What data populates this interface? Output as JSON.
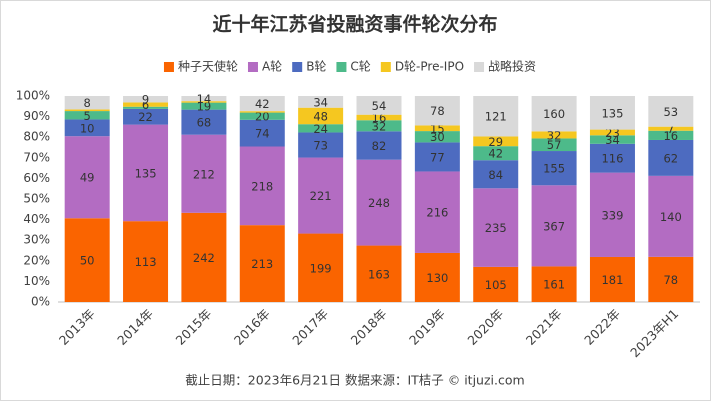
{
  "chart_data": {
    "type": "bar",
    "stacking": "percent",
    "title": "近十年江苏省投融资事件轮次分布",
    "note": "截止日期：2023年6月21日    数据来源：IT桔子 © itjuzi.com",
    "categories": [
      "2013年",
      "2014年",
      "2015年",
      "2016年",
      "2017年",
      "2018年",
      "2019年",
      "2020年",
      "2021年",
      "2022年",
      "2023年H1"
    ],
    "series": [
      {
        "name": "种子天使轮",
        "color": "#fa6400",
        "values": [
          50,
          113,
          242,
          213,
          199,
          163,
          130,
          105,
          161,
          181,
          78
        ]
      },
      {
        "name": "A轮",
        "color": "#b36cc2",
        "values": [
          49,
          135,
          212,
          218,
          221,
          248,
          216,
          235,
          367,
          339,
          140
        ]
      },
      {
        "name": "B轮",
        "color": "#4d6bc0",
        "values": [
          10,
          22,
          68,
          74,
          73,
          82,
          77,
          84,
          155,
          116,
          62
        ],
        "value_labels": [
          "10",
          "22",
          "68",
          "74",
          "73",
          "82",
          "77",
          "84",
          "155",
          "116",
          "62"
        ]
      },
      {
        "name": "C轮",
        "color": "#4dba8a",
        "values": [
          5,
          3,
          19,
          20,
          24,
          32,
          30,
          42,
          57,
          34,
          16
        ],
        "value_labels": [
          "5",
          null,
          "19",
          "20",
          "24",
          "32",
          "30",
          "42",
          "57",
          "34",
          "16"
        ]
      },
      {
        "name": "D轮-Pre-IPO",
        "color": "#f5c720",
        "values": [
          1,
          6,
          4,
          4,
          48,
          16,
          15,
          29,
          32,
          23,
          7
        ],
        "value_labels": [
          null,
          "6",
          null,
          null,
          "48",
          "16",
          "15",
          "29",
          "32",
          "23",
          "7"
        ]
      },
      {
        "name": "战略投资",
        "color": "#d9d9d9",
        "values": [
          8,
          9,
          14,
          42,
          34,
          54,
          78,
          121,
          160,
          135,
          53
        ]
      }
    ],
    "ylim": [
      0,
      100
    ],
    "yticks": [
      {
        "value": 0,
        "label": "0%"
      },
      {
        "value": 10,
        "label": "10%"
      },
      {
        "value": 20,
        "label": "20%"
      },
      {
        "value": 30,
        "label": "30%"
      },
      {
        "value": 40,
        "label": "40%"
      },
      {
        "value": 50,
        "label": "50%"
      },
      {
        "value": 60,
        "label": "60%"
      },
      {
        "value": 70,
        "label": "70%"
      },
      {
        "value": 80,
        "label": "80%"
      },
      {
        "value": 90,
        "label": "90%"
      },
      {
        "value": 100,
        "label": "100%"
      }
    ],
    "legend": "top"
  }
}
